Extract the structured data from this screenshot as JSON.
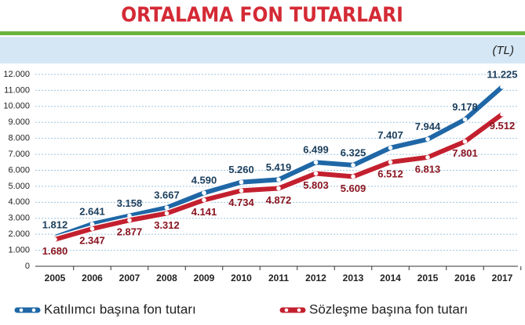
{
  "chart_data": {
    "type": "line",
    "title": "ORTALAMA FON TUTARLARI",
    "unit": "(TL)",
    "categories": [
      "2005",
      "2006",
      "2007",
      "2008",
      "2009",
      "2010",
      "2011",
      "2012",
      "2013",
      "2014",
      "2015",
      "2016",
      "2017"
    ],
    "series": [
      {
        "name": "Katılımcı başına fon tutarı",
        "color": "#1f67a6",
        "values": [
          1812,
          2641,
          3158,
          3667,
          4590,
          5260,
          5419,
          6499,
          6325,
          7407,
          7944,
          9178,
          11225
        ],
        "value_labels": [
          "1.812",
          "2.641",
          "3.158",
          "3.667",
          "4.590",
          "5.260",
          "5.419",
          "6.499",
          "6.325",
          "7.407",
          "7.944",
          "9.178",
          "11.225"
        ]
      },
      {
        "name": "Sözleşme başına fon tutarı",
        "color": "#c3202f",
        "values": [
          1680,
          2347,
          2877,
          3312,
          4141,
          4734,
          4872,
          5803,
          5609,
          6512,
          6813,
          7801,
          9512
        ],
        "value_labels": [
          "1.680",
          "2.347",
          "2.877",
          "3.312",
          "4.141",
          "4.734",
          "4.872",
          "5.803",
          "5.609",
          "6.512",
          "6.813",
          "7.801",
          "9.512"
        ]
      }
    ],
    "ylim": [
      0,
      12000
    ],
    "yticks": [
      0,
      {
        "value": 1000,
        "label": "1.000"
      },
      {
        "value": 2000,
        "label": "2.000"
      },
      {
        "value": 3000,
        "label": "3.000"
      },
      {
        "value": 4000,
        "label": "4.000"
      },
      {
        "value": 5000,
        "label": "5.000"
      },
      {
        "value": 6000,
        "label": "6.000"
      },
      {
        "value": 7000,
        "label": "7.000"
      },
      {
        "value": 8000,
        "label": "8.000"
      },
      {
        "value": 9000,
        "label": "9.000"
      },
      {
        "value": 10000,
        "label": "10.000"
      },
      {
        "value": 11000,
        "label": "11.000"
      },
      {
        "value": 12000,
        "label": "12.000"
      }
    ],
    "grid": true
  }
}
